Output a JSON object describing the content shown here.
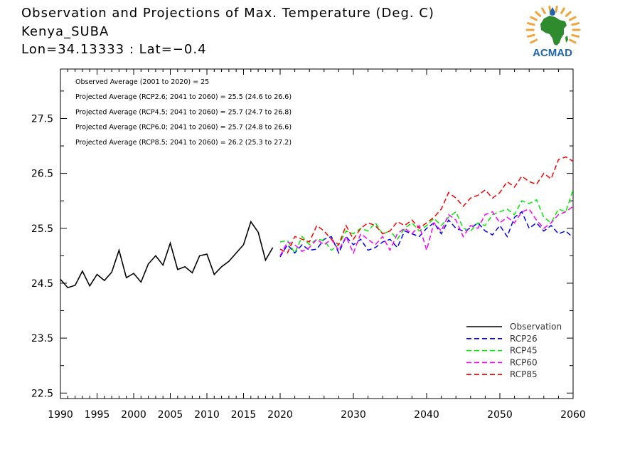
{
  "header": {
    "title": "Observation and Projections of Max. Temperature (Deg. C)",
    "location": "Kenya_SUBA",
    "coords": "Lon=34.13333 : Lat=−0.4"
  },
  "logo": {
    "text": "ACMAD",
    "colors": {
      "africa": "#2e8b2e",
      "text": "#1f66b2",
      "rays": "#f2a33a",
      "drop": "#1f66b2"
    }
  },
  "stats": [
    "Observed Average (2001 to 2020) = 25",
    "Projected Average (RCP2.6; 2041 to 2060) = 25.5 (24.6 to 26.6)",
    "Projected Average (RCP4.5; 2041 to 2060) = 25.7 (24.7 to 26.8)",
    "Projected Average (RCP6.0; 2041 to 2060) = 25.7 (24.8 to 26.6)",
    "Projected Average (RCP8.5; 2041 to 2060) = 26.2 (25.3 to 27.2)"
  ],
  "chart_data": {
    "type": "line",
    "title": "Observation and Projections of Max. Temperature (Deg. C)",
    "xlabel": "",
    "ylabel": "",
    "xlim": [
      1990,
      2060
    ],
    "ylim": [
      22.4,
      28.4
    ],
    "grid": false,
    "legend_position": "bottom-right",
    "x_ticks": [
      1990,
      1995,
      2000,
      2005,
      2010,
      2015,
      2020,
      2030,
      2040,
      2050,
      2060
    ],
    "y_ticks": [
      22.5,
      23.5,
      24.5,
      25.5,
      26.5,
      27.5
    ],
    "series": [
      {
        "name": "Observation",
        "color": "#000000",
        "dash": false,
        "x_start": 1990,
        "values": [
          24.57,
          24.42,
          24.46,
          24.72,
          24.45,
          24.66,
          24.55,
          24.7,
          25.1,
          24.6,
          24.68,
          24.52,
          24.85,
          25.0,
          24.83,
          25.23,
          24.75,
          24.8,
          24.69,
          25.0,
          25.03,
          24.66,
          24.8,
          24.9,
          25.05,
          25.2,
          25.62,
          25.43,
          24.92,
          25.15
        ]
      },
      {
        "name": "RCP26",
        "color": "#0000ff",
        "dash": true,
        "x_start": 2020,
        "values": [
          24.98,
          25.2,
          25.05,
          25.2,
          25.1,
          25.12,
          25.3,
          25.35,
          25.05,
          25.35,
          25.2,
          25.3,
          25.1,
          25.15,
          25.25,
          25.3,
          25.15,
          25.45,
          25.4,
          25.35,
          25.5,
          25.6,
          25.4,
          25.65,
          25.5,
          25.45,
          25.5,
          25.6,
          25.45,
          25.38,
          25.55,
          25.35,
          25.7,
          25.8,
          25.5,
          25.6,
          25.45,
          25.55,
          25.4,
          25.45,
          25.33
        ]
      },
      {
        "name": "RCP45",
        "color": "#00ee00",
        "dash": true,
        "x_start": 2020,
        "values": [
          25.25,
          25.28,
          25.05,
          25.35,
          25.2,
          25.3,
          25.28,
          25.1,
          25.2,
          25.45,
          25.4,
          25.5,
          25.45,
          25.6,
          25.4,
          25.45,
          25.3,
          25.5,
          25.6,
          25.45,
          25.55,
          25.68,
          25.55,
          25.7,
          25.8,
          25.5,
          25.45,
          25.6,
          25.55,
          25.75,
          25.8,
          25.85,
          25.75,
          26.0,
          25.95,
          26.02,
          25.7,
          25.6,
          25.85,
          25.8,
          26.2
        ]
      },
      {
        "name": "RCP60",
        "color": "#ff00ff",
        "dash": true,
        "x_start": 2020,
        "values": [
          25.0,
          25.25,
          25.2,
          25.08,
          25.15,
          25.3,
          25.2,
          25.3,
          25.1,
          25.35,
          25.05,
          25.4,
          25.3,
          25.2,
          25.35,
          25.1,
          25.4,
          25.5,
          25.4,
          25.55,
          25.1,
          25.6,
          25.45,
          25.75,
          25.65,
          25.35,
          25.55,
          25.5,
          25.75,
          25.8,
          25.6,
          25.7,
          25.6,
          25.8,
          25.85,
          25.65,
          25.5,
          25.6,
          25.75,
          25.8,
          25.9
        ]
      },
      {
        "name": "RCP85",
        "color": "#ff0000",
        "dash": true,
        "x_start": 2020,
        "values": [
          25.12,
          25.05,
          25.35,
          25.3,
          25.25,
          25.55,
          25.45,
          25.3,
          25.2,
          25.55,
          25.3,
          25.5,
          25.6,
          25.55,
          25.4,
          25.45,
          25.62,
          25.55,
          25.65,
          25.5,
          25.6,
          25.7,
          25.85,
          26.15,
          26.05,
          25.9,
          26.05,
          26.1,
          26.2,
          26.05,
          26.15,
          26.35,
          26.25,
          26.45,
          26.35,
          26.3,
          26.5,
          26.4,
          26.75,
          26.8,
          26.72
        ]
      }
    ]
  }
}
